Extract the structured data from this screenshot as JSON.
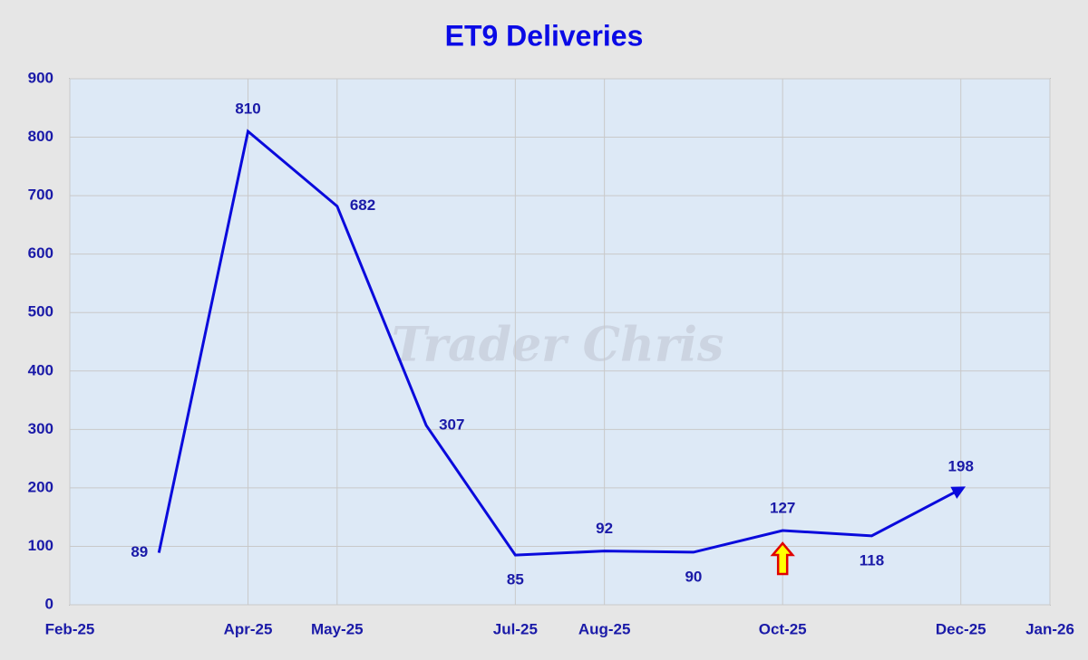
{
  "chart_data": {
    "type": "line",
    "title": "ET9 Deliveries",
    "watermark": "Trader Chris",
    "x": [
      "2025-03",
      "2025-04",
      "2025-05",
      "2025-06",
      "2025-07",
      "2025-08",
      "2025-09",
      "2025-10",
      "2025-11",
      "2025-12"
    ],
    "series": [
      {
        "name": "ET9 Deliveries",
        "color": "#0a0adc",
        "values": [
          89,
          810,
          682,
          307,
          85,
          92,
          90,
          127,
          118,
          198
        ]
      }
    ],
    "xlim": [
      "2025-02",
      "2026-01"
    ],
    "xticks": [
      {
        "value": "2025-02",
        "label": "Feb-25"
      },
      {
        "value": "2025-04",
        "label": "Apr-25"
      },
      {
        "value": "2025-05",
        "label": "May-25"
      },
      {
        "value": "2025-07",
        "label": "Jul-25"
      },
      {
        "value": "2025-08",
        "label": "Aug-25"
      },
      {
        "value": "2025-10",
        "label": "Oct-25"
      },
      {
        "value": "2025-12",
        "label": "Dec-25"
      },
      {
        "value": "2026-01",
        "label": "Jan-26"
      }
    ],
    "ylim": [
      0,
      900
    ],
    "yticks": [
      0,
      100,
      200,
      300,
      400,
      500,
      600,
      700,
      800,
      900
    ],
    "grid": true
  }
}
